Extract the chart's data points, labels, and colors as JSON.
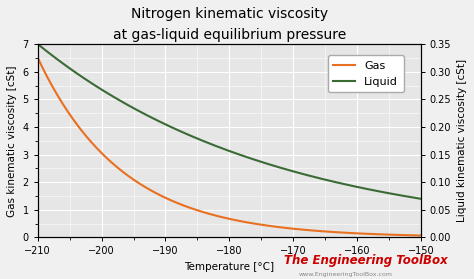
{
  "title": "Nitrogen kinematic viscosity",
  "subtitle": "at gas-liquid equilibrium pressure",
  "xlabel": "Temperature [°C]",
  "ylabel_left": "Gas kinematic viscosity [cSt]",
  "ylabel_right": "Liquid kinematic viscosity [cSt]",
  "x_min": -210,
  "x_max": -150,
  "y_left_min": 0,
  "y_left_max": 7,
  "y_right_min": 0.0,
  "y_right_max": 0.35,
  "x_ticks": [
    -210,
    -200,
    -190,
    -180,
    -170,
    -160,
    -150
  ],
  "y_left_ticks": [
    0,
    1,
    2,
    3,
    4,
    5,
    6,
    7
  ],
  "y_right_ticks": [
    0.0,
    0.05,
    0.1,
    0.15,
    0.2,
    0.25,
    0.3,
    0.35
  ],
  "gas_color": "#E87020",
  "liquid_color": "#3A6B35",
  "legend_labels": [
    "Gas",
    "Liquid"
  ],
  "bg_color": "#f0f0f0",
  "plot_bg_color": "#e6e6e6",
  "grid_color": "#ffffff",
  "watermark": "The Engineering ToolBox",
  "watermark_color": "#cc0000",
  "watermark_url": "www.EngineeringToolBox.com",
  "title_fontsize": 10,
  "label_fontsize": 7.5,
  "tick_fontsize": 7,
  "legend_fontsize": 8,
  "watermark_fontsize": 8.5
}
